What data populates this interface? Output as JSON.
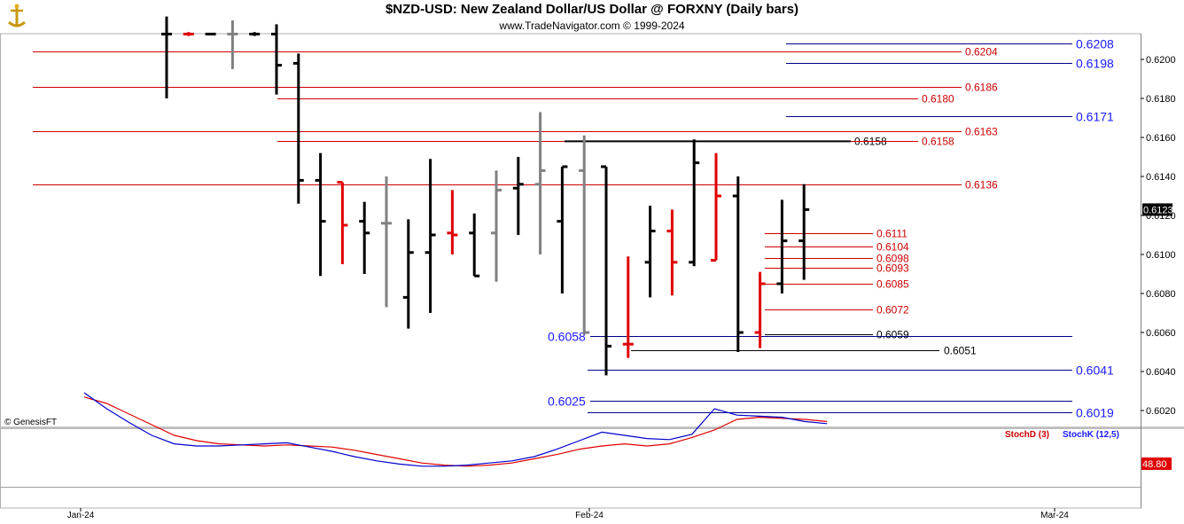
{
  "header": {
    "title": "$NZD-USD:  New Zealand Dollar/US Dollar @ FORXNY  (Daily bars)",
    "subtitle": "www.TradeNavigator.com © 1999-2024"
  },
  "credit": "© GenesisFT",
  "colors": {
    "up": "#000000",
    "down": "#e00000",
    "flat": "#808080",
    "red_line": "#cc0000",
    "blue_line": "#00008b",
    "blue_text": "#1a1aff"
  },
  "chart_data": [
    {
      "type": "ohlc",
      "title": "$NZD-USD:  New Zealand Dollar/US Dollar @ FORXNY  (Daily bars)",
      "ylim": [
        0.601,
        0.6215
      ],
      "yticks": [
        "0.6200",
        "0.6180",
        "0.6160",
        "0.6140",
        "0.6120",
        "0.6100",
        "0.6080",
        "0.6060",
        "0.6040",
        "0.6020"
      ],
      "xlabels": [
        "Jan-24",
        "Feb-24",
        "Mar-24"
      ],
      "last_price": "0.6123",
      "bars": [
        {
          "o": 0.6213,
          "h": 0.6222,
          "l": 0.618,
          "c": 0.6213,
          "color": "black"
        },
        {
          "o": 0.6213,
          "h": 0.6214,
          "l": 0.6212,
          "c": 0.6213,
          "color": "red"
        },
        {
          "o": 0.6213,
          "h": 0.6213,
          "l": 0.6213,
          "c": 0.6213,
          "color": "black"
        },
        {
          "o": 0.6213,
          "h": 0.622,
          "l": 0.6195,
          "c": 0.6213,
          "color": "gray"
        },
        {
          "o": 0.6213,
          "h": 0.6214,
          "l": 0.6212,
          "c": 0.6213,
          "color": "black"
        },
        {
          "o": 0.6213,
          "h": 0.6218,
          "l": 0.6182,
          "c": 0.6197,
          "color": "black"
        },
        {
          "o": 0.6198,
          "h": 0.6203,
          "l": 0.6126,
          "c": 0.6138,
          "color": "black"
        },
        {
          "o": 0.6138,
          "h": 0.6152,
          "l": 0.6089,
          "c": 0.6117,
          "color": "black"
        },
        {
          "o": 0.6137,
          "h": 0.6137,
          "l": 0.6095,
          "c": 0.6115,
          "color": "red"
        },
        {
          "o": 0.6117,
          "h": 0.6127,
          "l": 0.609,
          "c": 0.6111,
          "color": "black"
        },
        {
          "o": 0.6116,
          "h": 0.614,
          "l": 0.6073,
          "c": 0.6116,
          "color": "gray"
        },
        {
          "o": 0.6078,
          "h": 0.6118,
          "l": 0.6062,
          "c": 0.6101,
          "color": "black"
        },
        {
          "o": 0.6101,
          "h": 0.6149,
          "l": 0.607,
          "c": 0.611,
          "color": "black"
        },
        {
          "o": 0.6111,
          "h": 0.6133,
          "l": 0.61,
          "c": 0.611,
          "color": "red"
        },
        {
          "o": 0.6111,
          "h": 0.6121,
          "l": 0.6089,
          "c": 0.6089,
          "color": "black"
        },
        {
          "o": 0.6111,
          "h": 0.6143,
          "l": 0.6086,
          "c": 0.6133,
          "color": "gray"
        },
        {
          "o": 0.6134,
          "h": 0.615,
          "l": 0.611,
          "c": 0.6136,
          "color": "black"
        },
        {
          "o": 0.6136,
          "h": 0.6173,
          "l": 0.61,
          "c": 0.6143,
          "color": "gray"
        },
        {
          "o": 0.6117,
          "h": 0.6145,
          "l": 0.608,
          "c": 0.6145,
          "color": "black"
        },
        {
          "o": 0.6143,
          "h": 0.6161,
          "l": 0.6059,
          "c": 0.606,
          "color": "gray"
        },
        {
          "o": 0.6145,
          "h": 0.6145,
          "l": 0.6038,
          "c": 0.6053,
          "color": "black"
        },
        {
          "o": 0.6054,
          "h": 0.6099,
          "l": 0.6047,
          "c": 0.6054,
          "color": "red"
        },
        {
          "o": 0.6096,
          "h": 0.6125,
          "l": 0.6078,
          "c": 0.6112,
          "color": "black"
        },
        {
          "o": 0.6112,
          "h": 0.6123,
          "l": 0.6079,
          "c": 0.6096,
          "color": "red"
        },
        {
          "o": 0.6096,
          "h": 0.6159,
          "l": 0.6094,
          "c": 0.6147,
          "color": "black"
        },
        {
          "o": 0.6097,
          "h": 0.6152,
          "l": 0.6097,
          "c": 0.613,
          "color": "red"
        },
        {
          "o": 0.613,
          "h": 0.614,
          "l": 0.605,
          "c": 0.606,
          "color": "black"
        },
        {
          "o": 0.606,
          "h": 0.6091,
          "l": 0.6052,
          "c": 0.6085,
          "color": "red"
        },
        {
          "o": 0.6085,
          "h": 0.6128,
          "l": 0.608,
          "c": 0.6107,
          "color": "black"
        },
        {
          "o": 0.6107,
          "h": 0.6136,
          "l": 0.6087,
          "c": 0.6123,
          "color": "black"
        }
      ],
      "levels": [
        {
          "label": "0.6208",
          "value": 0.6208,
          "color": "blue",
          "style": "large"
        },
        {
          "label": "0.6204",
          "value": 0.6204,
          "color": "red",
          "style": "small"
        },
        {
          "label": "0.6198",
          "value": 0.6198,
          "color": "blue",
          "style": "large"
        },
        {
          "label": "0.6186",
          "value": 0.6186,
          "color": "red",
          "style": "small"
        },
        {
          "label": "0.6180",
          "value": 0.618,
          "color": "red",
          "style": "small"
        },
        {
          "label": "0.6171",
          "value": 0.6171,
          "color": "blue",
          "style": "large"
        },
        {
          "label": "0.6163",
          "value": 0.6163,
          "color": "red",
          "style": "small"
        },
        {
          "label": "0.6158",
          "value": 0.6158,
          "color": "black",
          "style": "small"
        },
        {
          "label": "0.6158",
          "value": 0.6158,
          "color": "red",
          "style": "small"
        },
        {
          "label": "0.6136",
          "value": 0.6136,
          "color": "red",
          "style": "small"
        },
        {
          "label": "0.6111",
          "value": 0.6111,
          "color": "red",
          "style": "small"
        },
        {
          "label": "0.6104",
          "value": 0.6104,
          "color": "red",
          "style": "small"
        },
        {
          "label": "0.6098",
          "value": 0.6098,
          "color": "red",
          "style": "small"
        },
        {
          "label": "0.6093",
          "value": 0.6093,
          "color": "red",
          "style": "small"
        },
        {
          "label": "0.6085",
          "value": 0.6085,
          "color": "red",
          "style": "small"
        },
        {
          "label": "0.6072",
          "value": 0.6072,
          "color": "red",
          "style": "small"
        },
        {
          "label": "0.6059",
          "value": 0.6059,
          "color": "black",
          "style": "small"
        },
        {
          "label": "0.6058",
          "value": 0.6058,
          "color": "blue",
          "style": "large"
        },
        {
          "label": "0.6051",
          "value": 0.6051,
          "color": "black",
          "style": "small"
        },
        {
          "label": "0.6041",
          "value": 0.6041,
          "color": "blue",
          "style": "large"
        },
        {
          "label": "0.6025",
          "value": 0.6025,
          "color": "blue",
          "style": "large"
        },
        {
          "label": "0.6019",
          "value": 0.6019,
          "color": "blue",
          "style": "large"
        }
      ]
    },
    {
      "type": "line",
      "legend": [
        "StochD (3)",
        "StochK (12,5)"
      ],
      "last_value": "48.80",
      "ylim": [
        0,
        100
      ],
      "series": [
        {
          "name": "StochD (3)",
          "color": "red",
          "values": [
            96,
            90,
            80,
            70,
            60,
            55,
            52,
            51,
            50,
            51,
            50,
            49,
            46,
            42,
            38,
            34,
            32,
            31,
            32,
            34,
            38,
            42,
            47,
            50,
            52,
            50,
            52,
            58,
            65,
            75,
            77,
            76,
            75,
            73
          ]
        },
        {
          "name": "StochK (12,5)",
          "color": "blue",
          "values": [
            100,
            85,
            72,
            60,
            52,
            50,
            50,
            51,
            52,
            53,
            49,
            45,
            40,
            36,
            33,
            31,
            31,
            32,
            34,
            36,
            40,
            47,
            55,
            63,
            60,
            57,
            56,
            61,
            85,
            79,
            78,
            77,
            73,
            71
          ]
        }
      ]
    }
  ]
}
